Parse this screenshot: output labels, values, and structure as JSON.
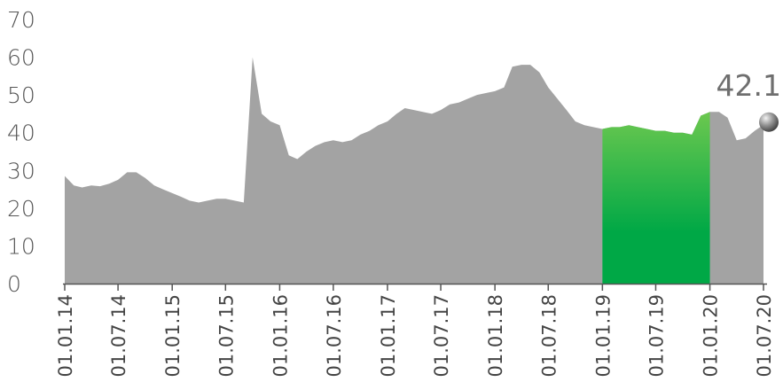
{
  "chart_data": {
    "type": "area",
    "title": "",
    "xlabel": "",
    "ylabel": "",
    "ylim": [
      0,
      70
    ],
    "y_ticks": [
      "0",
      "10",
      "20",
      "30",
      "40",
      "50",
      "60",
      "70"
    ],
    "x_ticks": [
      "01.01.14",
      "01.07.14",
      "01.01.15",
      "01.07.15",
      "01.01.16",
      "01.07.16",
      "01.01.17",
      "01.07.17",
      "01.01.18",
      "01.07.18",
      "01.01.19",
      "01.07.19",
      "01.01.20",
      "01.07.20"
    ],
    "last_value_label": "42.1",
    "colors": {
      "area": "#a3a3a3",
      "highlight_top": "#6cc84f",
      "highlight_bottom": "#00a846",
      "axis": "#555555"
    },
    "highlight_range": [
      "01.01.19",
      "01.01.20"
    ],
    "series": [
      {
        "x": [
          "01.01.14",
          "01.02.14",
          "01.03.14",
          "01.04.14",
          "01.05.14",
          "01.06.14",
          "01.07.14",
          "01.08.14",
          "01.09.14",
          "01.10.14",
          "01.11.14",
          "01.12.14",
          "01.01.15",
          "01.02.15",
          "01.03.15",
          "01.04.15",
          "01.05.15",
          "01.06.15",
          "01.07.15",
          "01.08.15",
          "01.09.15",
          "01.10.15",
          "01.11.15",
          "01.12.15",
          "01.01.16",
          "01.02.16",
          "01.03.16",
          "01.04.16",
          "01.05.16",
          "01.06.16",
          "01.07.16",
          "01.08.16",
          "01.09.16",
          "01.10.16",
          "01.11.16",
          "01.12.16",
          "01.01.17",
          "01.02.17",
          "01.03.17",
          "01.04.17",
          "01.05.17",
          "01.06.17",
          "01.07.17",
          "01.08.17",
          "01.09.17",
          "01.10.17",
          "01.11.17",
          "01.12.17",
          "01.01.18",
          "01.02.18",
          "01.03.18",
          "01.04.18",
          "01.05.18",
          "01.06.18",
          "01.07.18",
          "01.08.18",
          "01.09.18",
          "01.10.18",
          "01.11.18",
          "01.12.18",
          "01.01.19",
          "01.02.19",
          "01.03.19",
          "01.04.19",
          "01.05.19",
          "01.06.19",
          "01.07.19",
          "01.08.19",
          "01.09.19",
          "01.10.19",
          "01.11.19",
          "01.12.19",
          "01.01.20",
          "01.02.20",
          "01.03.20",
          "01.04.20",
          "01.05.20",
          "01.06.20",
          "01.07.20"
        ],
        "values": [
          28.5,
          26,
          25.5,
          26,
          25.8,
          26.5,
          27.5,
          29.5,
          29.5,
          28,
          26,
          25,
          24,
          23,
          22,
          21.5,
          22,
          22.5,
          22.5,
          22,
          21.5,
          60,
          45,
          43,
          42,
          34,
          33,
          35,
          36.5,
          37.5,
          38,
          37.5,
          38,
          39.5,
          40.5,
          42,
          43,
          45,
          46.5,
          46,
          45.5,
          45,
          46,
          47.5,
          48,
          49,
          50,
          50.5,
          51,
          52,
          57.5,
          58,
          58,
          56,
          52,
          49,
          46,
          43,
          42,
          41.5,
          41,
          41.5,
          41.5,
          42,
          41.5,
          41,
          40.5,
          40.5,
          40,
          40,
          39.5,
          44.5,
          45.5,
          45.5,
          44,
          38,
          38.5,
          40.5,
          42.1
        ]
      }
    ]
  }
}
